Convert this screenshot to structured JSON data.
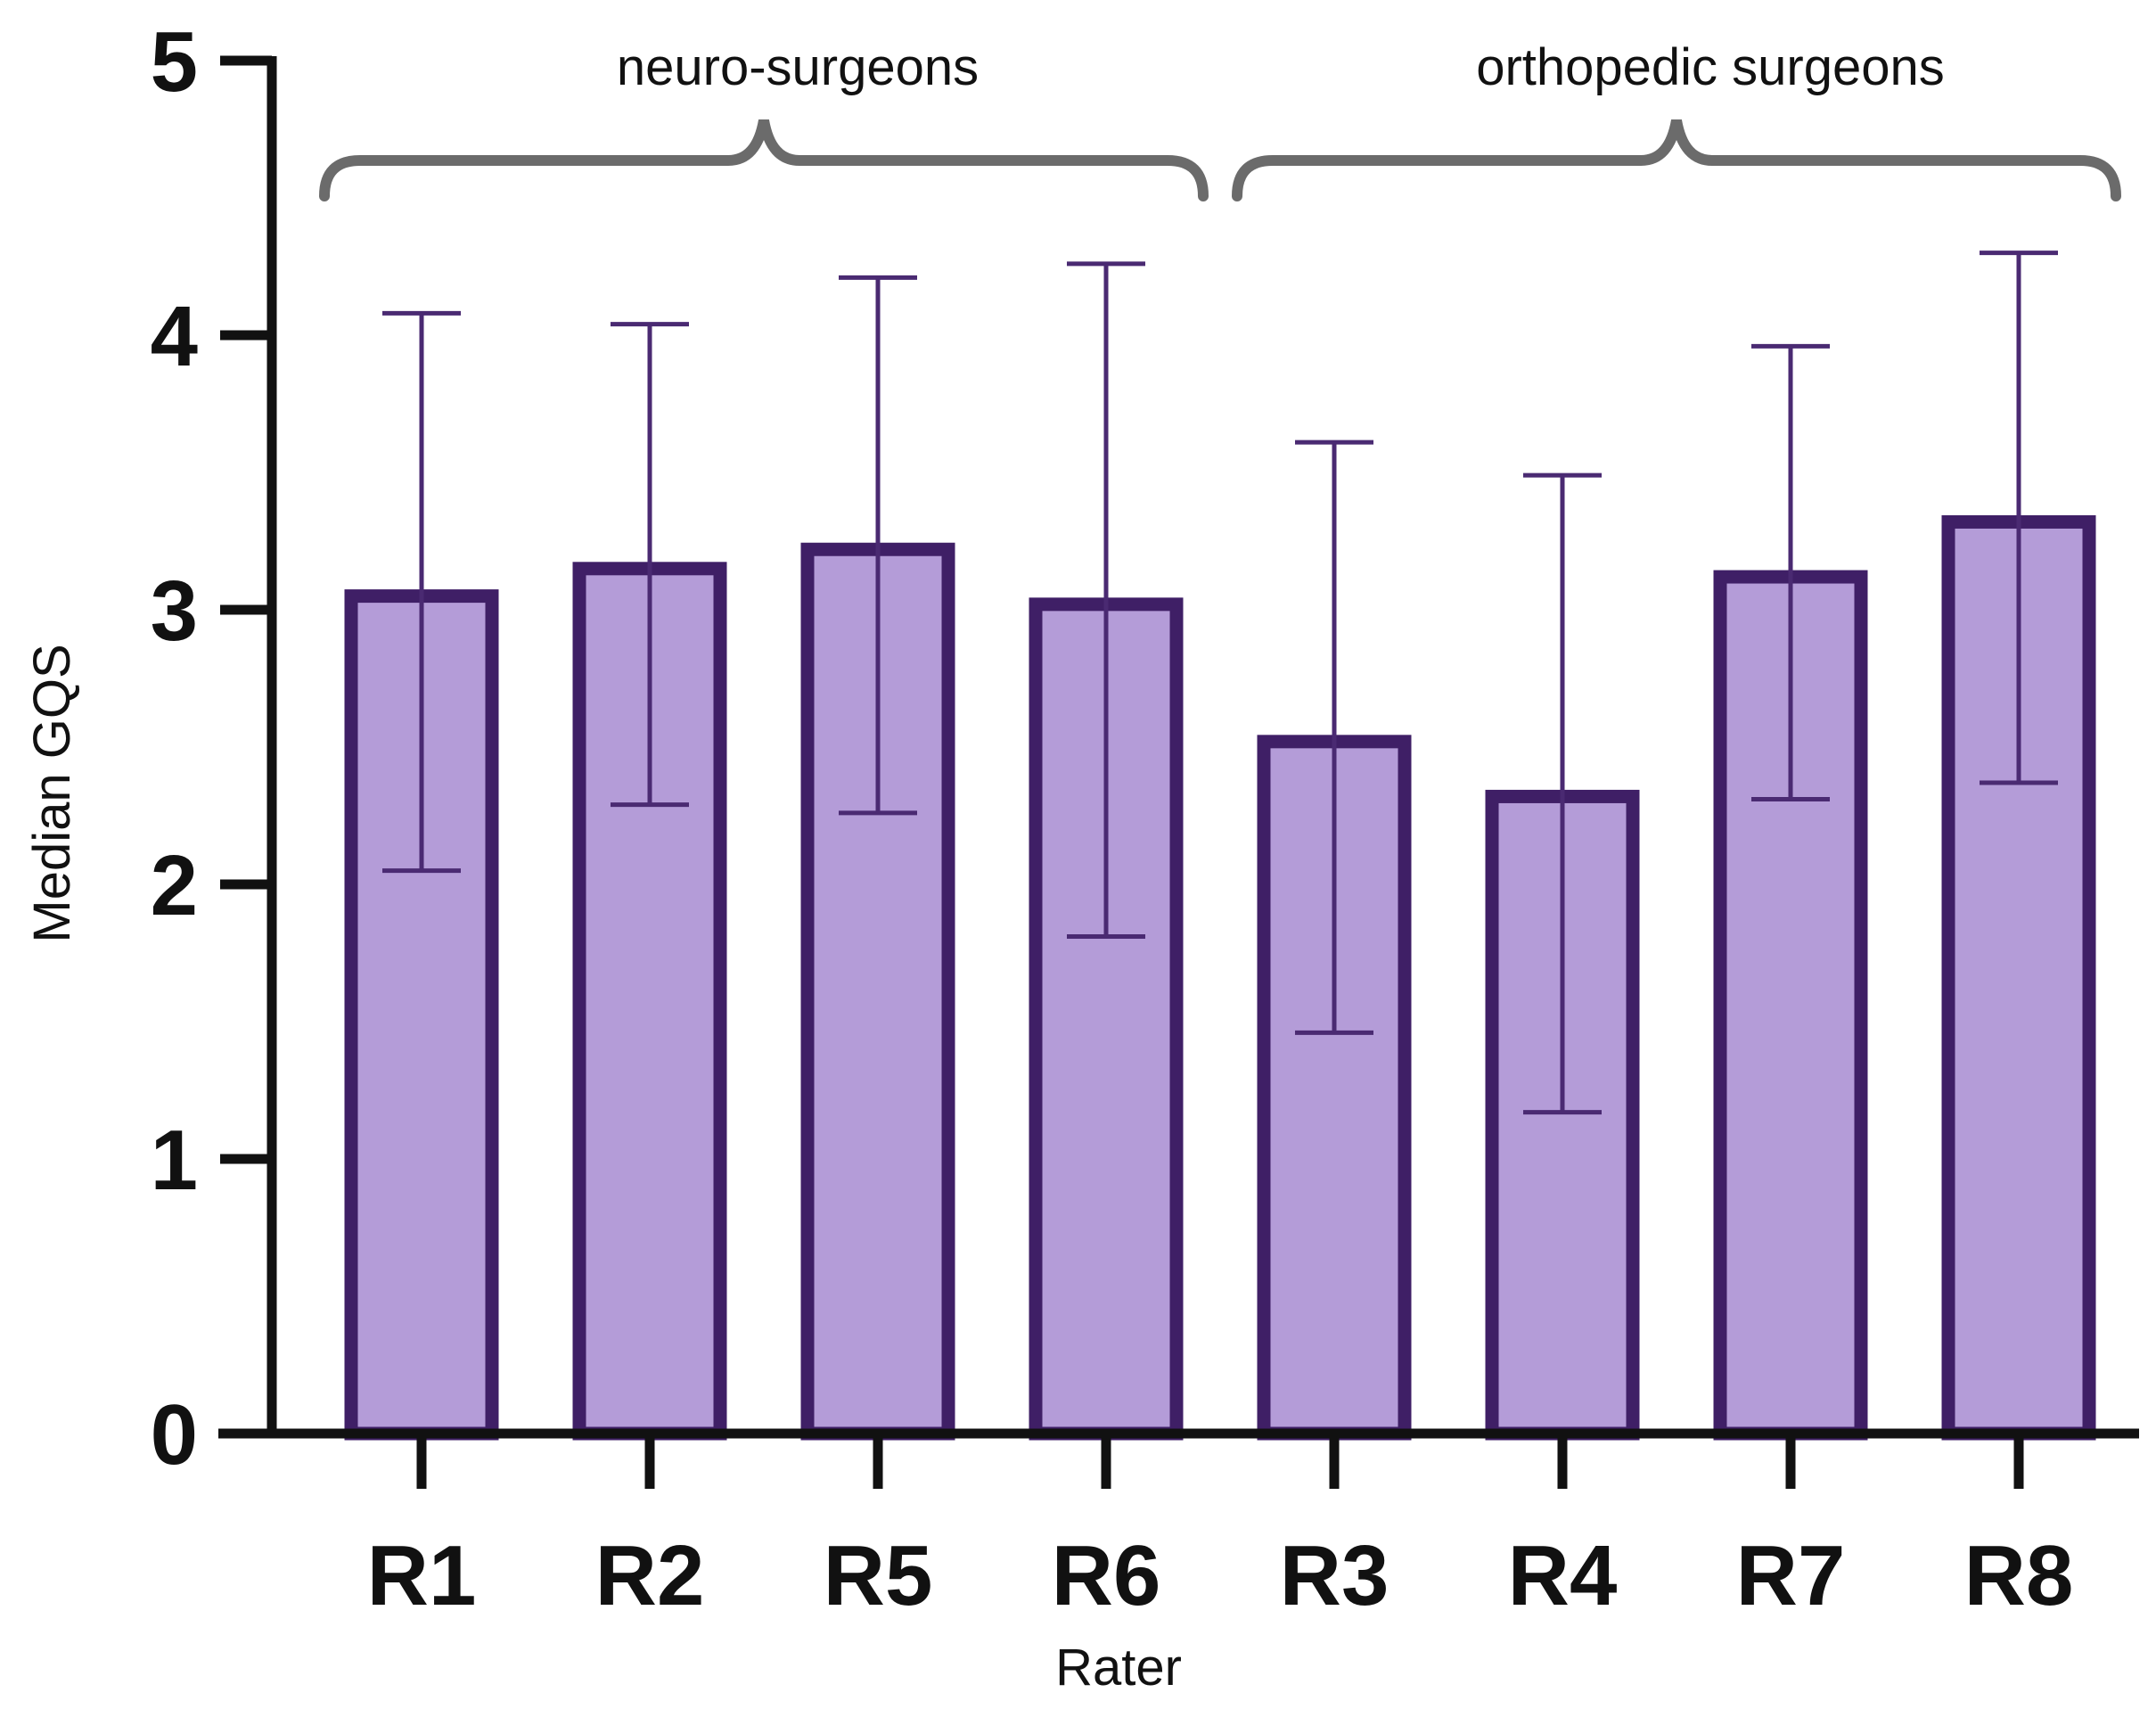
{
  "chart_data": {
    "type": "bar",
    "title": "",
    "xlabel": "Rater",
    "ylabel": "Median GQS",
    "ylim": [
      0,
      5
    ],
    "yticks": [
      "0",
      "1",
      "2",
      "3",
      "4",
      "5"
    ],
    "categories": [
      "R1",
      "R2",
      "R5",
      "R6",
      "R3",
      "R4",
      "R7",
      "R8"
    ],
    "values": [
      3.05,
      3.15,
      3.22,
      3.02,
      2.52,
      2.32,
      3.12,
      3.32
    ],
    "error_low": [
      2.05,
      2.29,
      2.26,
      1.81,
      1.46,
      1.17,
      2.31,
      2.37
    ],
    "error_high": [
      4.08,
      4.04,
      4.21,
      4.26,
      3.61,
      3.49,
      3.96,
      4.3
    ],
    "groups": [
      {
        "label": "neuro-surgeons",
        "members": [
          "R1",
          "R2",
          "R5",
          "R6"
        ]
      },
      {
        "label": "orthopedic surgeons",
        "members": [
          "R3",
          "R4",
          "R7",
          "R8"
        ]
      }
    ],
    "colors": {
      "bar_fill": "#b49cd8",
      "bar_edge": "#3f1f66",
      "error_bar": "#4a2a72",
      "axis": "#111111",
      "bracket": "#6b6b6b"
    }
  }
}
